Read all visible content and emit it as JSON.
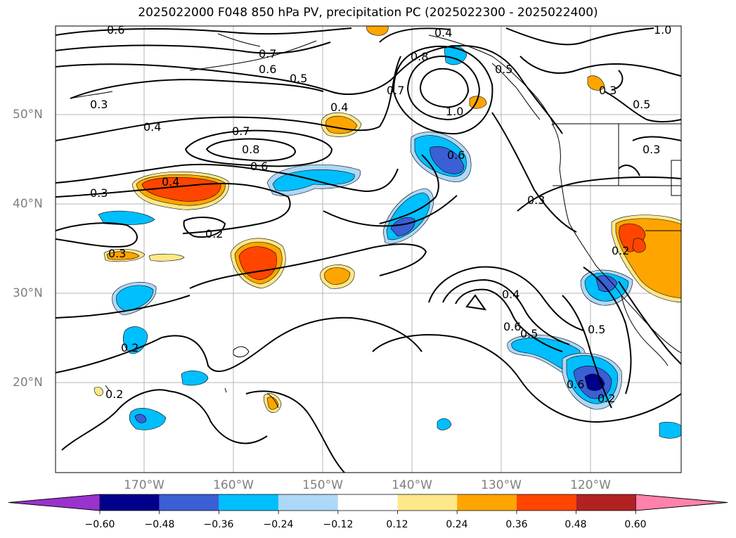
{
  "title": "2025022000 F048 850 hPa PV, precipitation PC (2025022300 - 2025022400)",
  "latitude_labels": [
    "50°N",
    "40°N",
    "30°N",
    "20°N"
  ],
  "longitude_labels": [
    "170°W",
    "160°W",
    "150°W",
    "140°W",
    "130°W",
    "120°W"
  ],
  "colorbar": {
    "ticks": [
      "−0.60",
      "−0.48",
      "−0.36",
      "−0.24",
      "−0.12",
      "0.12",
      "0.24",
      "0.36",
      "0.48",
      "0.60"
    ],
    "colors": [
      "#9a32cd",
      "#00008b",
      "#3b5fd4",
      "#00bfff",
      "#add8f8",
      "#ffffff",
      "#ffe88a",
      "#ffa500",
      "#ff4500",
      "#b22222",
      "#ff82ab"
    ]
  },
  "contour_labels": [
    "0.6",
    "0.7",
    "0.6",
    "0.5",
    "0.3",
    "0.4",
    "0.7",
    "0.8",
    "0.6",
    "0.4",
    "0.3",
    "0.2",
    "0.3",
    "0.4",
    "0.8",
    "0.7",
    "1.0",
    "0.6",
    "0.3",
    "0.4",
    "0.6",
    "0.5",
    "0.5",
    "0.6",
    "0.2",
    "0.2",
    "0.2",
    "0.3",
    "0.5",
    "0.3",
    "1.0",
    "0.4",
    "0.5",
    "0.2"
  ]
}
